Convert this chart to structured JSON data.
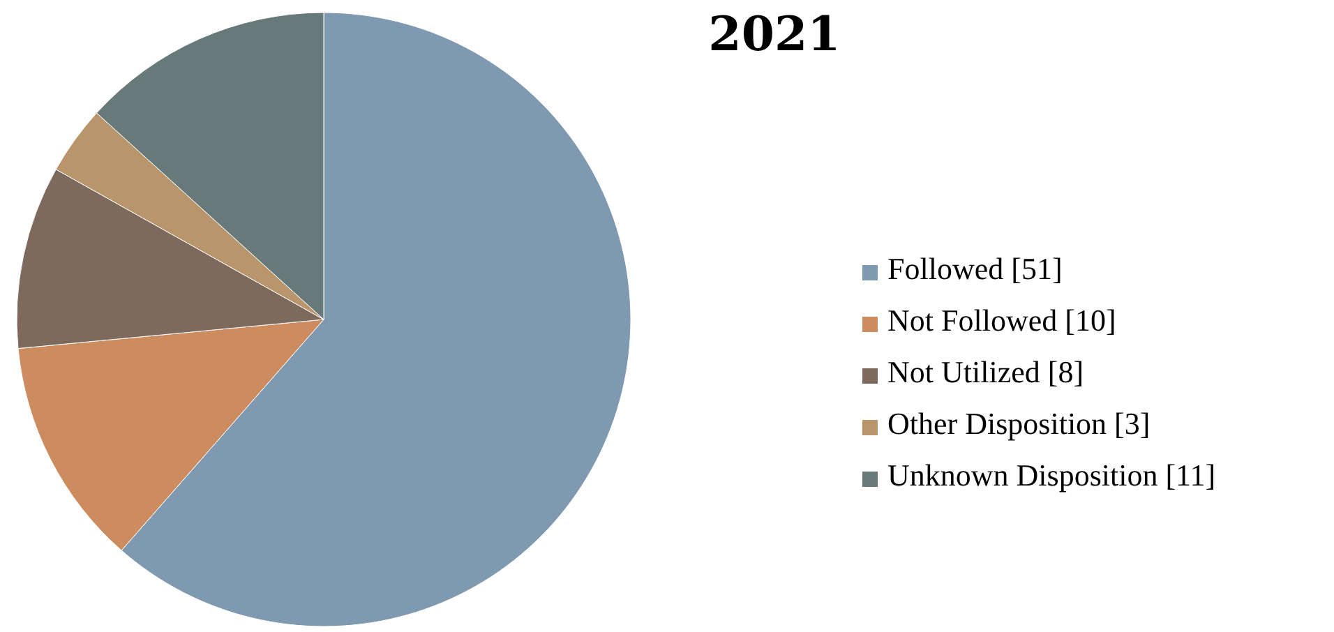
{
  "chart_data": {
    "type": "pie",
    "title": "2021",
    "categories": [
      "Followed [51]",
      "Not Followed [10]",
      "Not Utilized [8]",
      "Other Disposition [3]",
      "Unknown Disposition [11]"
    ],
    "values": [
      51,
      10,
      8,
      3,
      11
    ],
    "colors": [
      "#7f99b0",
      "#cc8c5f",
      "#7e6a5c",
      "#b8956b",
      "#677a79"
    ],
    "legend": "right"
  }
}
